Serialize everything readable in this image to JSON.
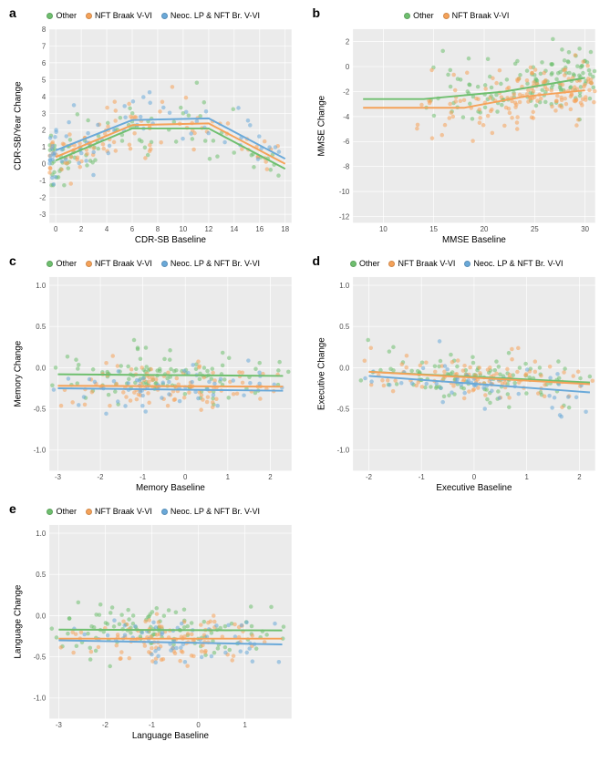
{
  "colors": {
    "other": "#6fbf6f",
    "nft": "#f5a259",
    "neoc": "#6aa9d9",
    "panel_bg": "#ebebeb",
    "grid": "#ffffff",
    "text": "#000000",
    "axis": "#4d4d4d"
  },
  "dot_radius": 2.3,
  "line_width": 2,
  "panels": {
    "a": {
      "letter": "a",
      "xlabel": "CDR-SB Baseline",
      "ylabel": "CDR-SB/Year Change",
      "xlim": [
        -0.5,
        18.5
      ],
      "ylim": [
        -3.5,
        8
      ],
      "xticks": [
        0,
        2,
        4,
        6,
        8,
        10,
        12,
        14,
        16,
        18
      ],
      "yticks": [
        -3,
        -2,
        -1,
        0,
        1,
        2,
        3,
        4,
        5,
        6,
        7,
        8
      ],
      "legend": [
        "other",
        "nft",
        "neoc"
      ],
      "lines": {
        "other": [
          [
            0,
            0.2
          ],
          [
            6,
            2.1
          ],
          [
            12,
            2.1
          ],
          [
            18,
            -0.3
          ]
        ],
        "nft": [
          [
            0,
            0.4
          ],
          [
            6,
            2.3
          ],
          [
            12,
            2.4
          ],
          [
            18,
            0.0
          ]
        ],
        "neoc": [
          [
            0,
            0.8
          ],
          [
            6,
            2.6
          ],
          [
            12,
            2.7
          ],
          [
            18,
            0.3
          ]
        ]
      },
      "scatter_n": {
        "other": 90,
        "nft": 95,
        "neoc": 70
      },
      "scatter_x_bias": 0.25,
      "scatter_y_spread": 1.8
    },
    "b": {
      "letter": "b",
      "xlabel": "MMSE Baseline",
      "ylabel": "MMSE Change",
      "xlim": [
        7,
        31
      ],
      "ylim": [
        -12.5,
        3
      ],
      "xticks": [
        10,
        15,
        20,
        25,
        30
      ],
      "yticks": [
        -12,
        -10,
        -8,
        -6,
        -4,
        -2,
        0,
        2
      ],
      "legend": [
        "other",
        "nft"
      ],
      "lines": {
        "other": [
          [
            8,
            -2.6
          ],
          [
            14,
            -2.6
          ],
          [
            22,
            -2.0
          ],
          [
            30,
            -0.9
          ]
        ],
        "nft": [
          [
            8,
            -3.3
          ],
          [
            18,
            -3.3
          ],
          [
            24,
            -2.4
          ],
          [
            30,
            -1.9
          ]
        ]
      },
      "scatter_n": {
        "other": 140,
        "nft": 150
      },
      "scatter_x_bias": 0.78,
      "scatter_y_spread": 2.6
    },
    "c": {
      "letter": "c",
      "xlabel": "Memory Baseline",
      "ylabel": "Memory Change",
      "xlim": [
        -3.2,
        2.5
      ],
      "ylim": [
        -1.25,
        1.1
      ],
      "xticks": [
        -3,
        -2,
        -1,
        0,
        1,
        2
      ],
      "yticks": [
        -1.0,
        -0.5,
        0.0,
        0.5,
        1.0
      ],
      "legend": [
        "other",
        "nft",
        "neoc"
      ],
      "lines": {
        "other": [
          [
            -3,
            -0.08
          ],
          [
            2.3,
            -0.1
          ]
        ],
        "nft": [
          [
            -3,
            -0.22
          ],
          [
            2.3,
            -0.23
          ]
        ],
        "neoc": [
          [
            -3,
            -0.25
          ],
          [
            2.3,
            -0.28
          ]
        ]
      },
      "scatter_n": {
        "other": 110,
        "nft": 100,
        "neoc": 55
      },
      "scatter_x_bias": 0.5,
      "scatter_y_spread": 0.35
    },
    "d": {
      "letter": "d",
      "xlabel": "Executive Baseline",
      "ylabel": "Executive Change",
      "xlim": [
        -2.3,
        2.3
      ],
      "ylim": [
        -1.25,
        1.1
      ],
      "xticks": [
        -2,
        -1,
        0,
        1,
        2
      ],
      "yticks": [
        -1.0,
        -0.5,
        0.0,
        0.5,
        1.0
      ],
      "legend": [
        "other",
        "nft",
        "neoc"
      ],
      "lines": {
        "other": [
          [
            -2,
            -0.05
          ],
          [
            2.2,
            -0.18
          ]
        ],
        "nft": [
          [
            -2,
            -0.05
          ],
          [
            2.2,
            -0.2
          ]
        ],
        "neoc": [
          [
            -2,
            -0.1
          ],
          [
            2.2,
            -0.3
          ]
        ]
      },
      "scatter_n": {
        "other": 110,
        "nft": 100,
        "neoc": 55
      },
      "scatter_x_bias": 0.5,
      "scatter_y_spread": 0.3
    },
    "e": {
      "letter": "e",
      "xlabel": "Language Baseline",
      "ylabel": "Language Change",
      "xlim": [
        -3.2,
        2.0
      ],
      "ylim": [
        -1.25,
        1.1
      ],
      "xticks": [
        -3,
        -2,
        -1,
        0,
        1
      ],
      "yticks": [
        -1.0,
        -0.5,
        0.0,
        0.5,
        1.0
      ],
      "legend": [
        "other",
        "nft",
        "neoc"
      ],
      "lines": {
        "other": [
          [
            -3,
            -0.17
          ],
          [
            1.8,
            -0.18
          ]
        ],
        "nft": [
          [
            -3,
            -0.28
          ],
          [
            1.8,
            -0.28
          ]
        ],
        "neoc": [
          [
            -3,
            -0.3
          ],
          [
            1.8,
            -0.35
          ]
        ]
      },
      "scatter_n": {
        "other": 110,
        "nft": 100,
        "neoc": 55
      },
      "scatter_x_bias": 0.5,
      "scatter_y_spread": 0.32
    }
  },
  "legend_labels": {
    "other": "Other",
    "nft": "NFT Braak V-VI",
    "neoc": "Neoc. LP & NFT Br. V-VI"
  },
  "tick_decimals_y": {
    "a": 0,
    "b": 0,
    "c": 1,
    "d": 1,
    "e": 1
  }
}
